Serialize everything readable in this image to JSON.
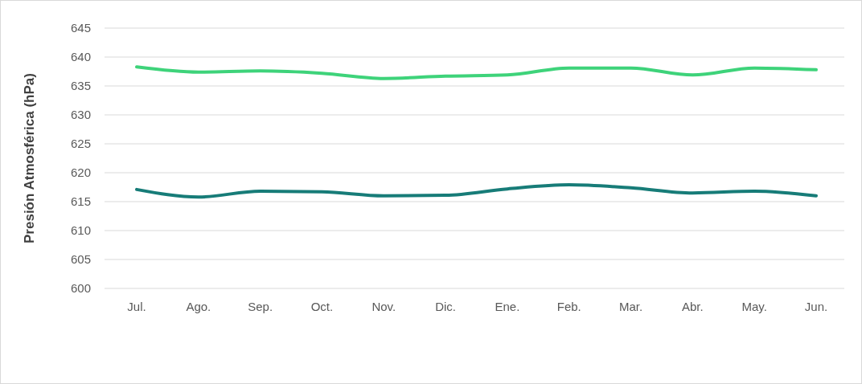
{
  "chart_data": {
    "type": "line",
    "ylabel": "Presión Atmosférica (hPa)",
    "categories": [
      "Jul.",
      "Ago.",
      "Sep.",
      "Oct.",
      "Nov.",
      "Dic.",
      "Ene.",
      "Feb.",
      "Mar.",
      "Abr.",
      "May.",
      "Jun."
    ],
    "series": [
      {
        "color": "#3ed37a",
        "values": [
          638.3,
          637.4,
          637.6,
          637.2,
          636.3,
          636.7,
          636.9,
          638.1,
          638.1,
          636.9,
          638.1,
          637.8
        ]
      },
      {
        "color": "#177c78",
        "values": [
          617.1,
          615.8,
          616.8,
          616.7,
          616.0,
          616.1,
          617.2,
          617.9,
          617.4,
          616.5,
          616.8,
          616.0
        ]
      }
    ],
    "ylim": [
      600,
      645
    ],
    "yticks": [
      600,
      605,
      610,
      615,
      620,
      625,
      630,
      635,
      640,
      645
    ],
    "grid": "y",
    "marker": "none",
    "line_style": "solid"
  }
}
